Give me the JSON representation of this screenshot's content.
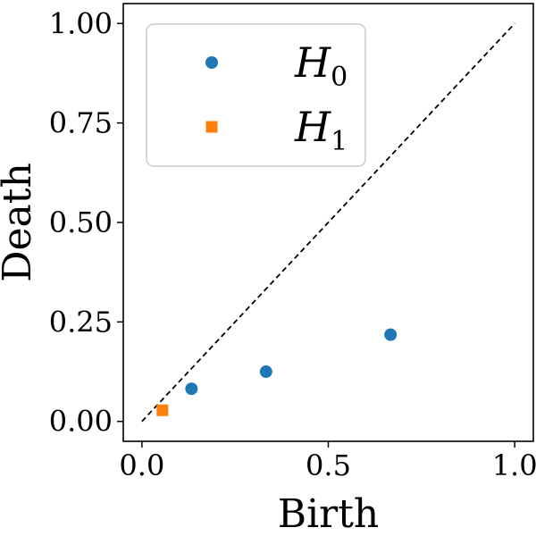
{
  "chart_data": {
    "type": "scatter",
    "title": "",
    "xlabel": "Birth",
    "ylabel": "Death",
    "xlim": [
      -0.05,
      1.05
    ],
    "ylim": [
      -0.05,
      1.05
    ],
    "x_ticks": [
      0.0,
      0.5,
      1.0
    ],
    "x_tick_labels": [
      "0.0",
      "0.5",
      "1.0"
    ],
    "y_ticks": [
      0.0,
      0.25,
      0.5,
      0.75,
      1.0
    ],
    "y_tick_labels": [
      "0.00",
      "0.25",
      "0.50",
      "0.75",
      "1.00"
    ],
    "grid": false,
    "legend_position": "top-left",
    "diagonal": {
      "from": [
        0,
        0
      ],
      "to": [
        1,
        1
      ],
      "style": "dashed",
      "color": "#000000"
    },
    "series": [
      {
        "name": "H",
        "subscript": "0",
        "marker": "circle",
        "color": "#1f77b4",
        "points": [
          [
            0.133,
            0.082
          ],
          [
            0.333,
            0.125
          ],
          [
            0.667,
            0.218
          ]
        ]
      },
      {
        "name": "H",
        "subscript": "1",
        "marker": "square",
        "color": "#ff7f0e",
        "points": [
          [
            0.055,
            0.028
          ]
        ]
      }
    ]
  }
}
